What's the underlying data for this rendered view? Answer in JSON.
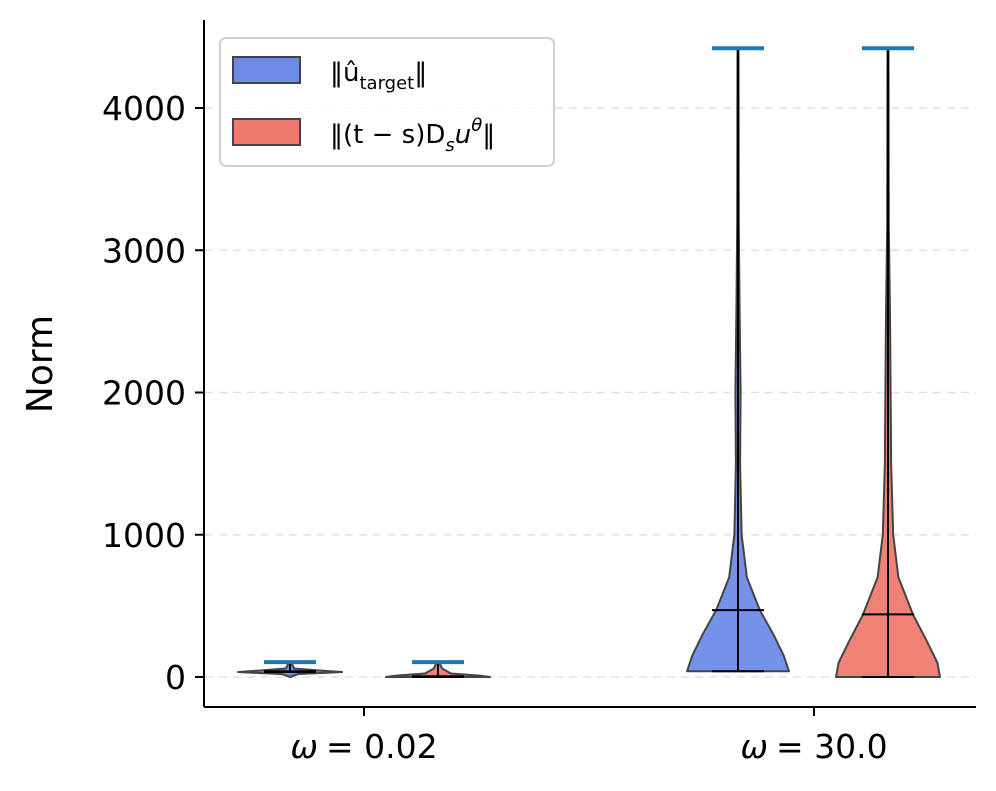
{
  "chart_data": {
    "type": "violin",
    "title": "",
    "xlabel": "",
    "ylabel": "Norm",
    "ylim": [
      -220,
      4620
    ],
    "yticks": [
      0,
      1000,
      2000,
      3000,
      4000
    ],
    "ytick_labels": [
      "0",
      "1000",
      "2000",
      "3000",
      "4000"
    ],
    "grid": "y-dashed",
    "categories": [
      {
        "prefix": "ω",
        "label": "= 0.02",
        "value": 0.02
      },
      {
        "prefix": "ω",
        "label": "= 30.0",
        "value": 30.0
      }
    ],
    "series": [
      {
        "name": "‖û_target‖",
        "legend_main": "‖û",
        "legend_sub": "target",
        "legend_end": "‖",
        "color": "#6d8ce8",
        "groups": [
          {
            "category": "ω = 0.02",
            "min": 35,
            "median": 40,
            "max": 105
          },
          {
            "category": "ω = 30.0",
            "min": 40,
            "median": 470,
            "max": 4420
          }
        ]
      },
      {
        "name": "‖(t − s)D_s u^θ‖",
        "legend_main": "‖(t − s)D",
        "legend_sub": "s",
        "legend_mid": "u",
        "legend_sup": "θ",
        "legend_end": "‖",
        "color": "#ee7a6e",
        "groups": [
          {
            "category": "ω = 0.02",
            "min": 0,
            "median": 5,
            "max": 105
          },
          {
            "category": "ω = 30.0",
            "min": 0,
            "median": 440,
            "max": 4420
          }
        ]
      }
    ],
    "extrema_color": "#1f77b4",
    "legend_position": "top-left"
  }
}
